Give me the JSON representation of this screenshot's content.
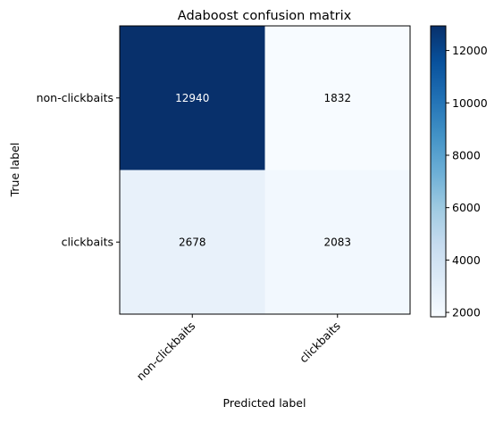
{
  "chart_data": {
    "type": "heatmap",
    "title": "Adaboost confusion matrix",
    "xlabel": "Predicted label",
    "ylabel": "True label",
    "x_categories": [
      "non-clickbaits",
      "clickbaits"
    ],
    "y_categories": [
      "non-clickbaits",
      "clickbaits"
    ],
    "values": [
      [
        12940,
        1832
      ],
      [
        2678,
        2083
      ]
    ],
    "value_labels": [
      [
        "12940",
        "1832"
      ],
      [
        "2678",
        "2083"
      ]
    ],
    "colormap": "Blues",
    "colorbar": {
      "range": [
        1832,
        12940
      ],
      "ticks": [
        2000,
        4000,
        6000,
        8000,
        10000,
        12000
      ],
      "tick_labels": [
        "2000",
        "4000",
        "6000",
        "8000",
        "10000",
        "12000"
      ]
    },
    "grid": false
  }
}
